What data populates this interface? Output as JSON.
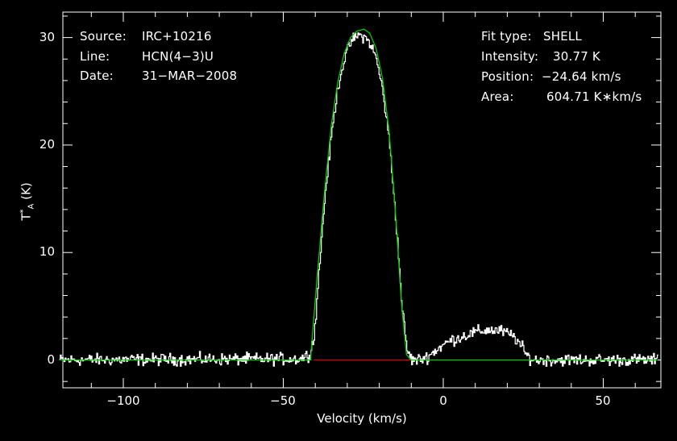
{
  "chart_data": {
    "type": "line",
    "xlabel": "Velocity (km/s)",
    "ylabel": {
      "symbol": "T",
      "sup": "*",
      "sub": "A",
      "unit": "(K)"
    },
    "xlim": [
      -120,
      67
    ],
    "ylim": [
      -2.5,
      32
    ],
    "x_ticks": [
      -100,
      -50,
      0,
      50
    ],
    "x_tick_labels": [
      "−100",
      "−50",
      "0",
      "50"
    ],
    "y_ticks": [
      0,
      10,
      20,
      30
    ],
    "y_tick_labels": [
      "0",
      "10",
      "20",
      "30"
    ],
    "grid": false,
    "header_left": [
      {
        "key": "Source:",
        "value": "IRC+10216"
      },
      {
        "key": "Line:",
        "value": "HCN(4−3)U"
      },
      {
        "key": "Date:",
        "value": "31−MAR−2008"
      }
    ],
    "header_right": [
      {
        "key": "Fit type:",
        "value": "SHELL"
      },
      {
        "key": "Intensity:",
        "value": "30.77 K"
      },
      {
        "key": "Position:",
        "value": "−24.64 km/s"
      },
      {
        "key": "Area:",
        "value": "604.71 K∗km/s"
      }
    ],
    "colors": {
      "background": "#000000",
      "axes": "#ffffff",
      "spectrum": "#ffffff",
      "fit": "#00cc00",
      "baseline": "#cc0000"
    },
    "series": [
      {
        "role": "spectrum",
        "x": [
          -120,
          -45,
          -42,
          -40.5,
          -39,
          -37,
          -35,
          -33,
          -31,
          -29,
          -27,
          -25,
          -23,
          -21,
          -19,
          -17,
          -15,
          -13,
          -11.5,
          -10,
          -8,
          -5,
          -2,
          2,
          6,
          10,
          14,
          18,
          22,
          24,
          26,
          28,
          67
        ],
        "y": [
          0,
          0.1,
          0.5,
          2,
          8,
          15.5,
          21,
          25.5,
          28,
          29.6,
          30.2,
          30.1,
          29.5,
          28,
          25,
          20.5,
          13.5,
          5,
          1,
          0,
          0,
          0.3,
          1,
          1.8,
          2.2,
          2.6,
          2.8,
          2.7,
          2.2,
          1.4,
          0.4,
          0,
          0
        ]
      },
      {
        "role": "fit",
        "x": [
          -120,
          -41.5,
          -39.5,
          -37,
          -35,
          -33,
          -31,
          -29,
          -27,
          -25,
          -24.64,
          -23,
          -21,
          -19,
          -17,
          -15,
          -13,
          -11.5,
          -10,
          67
        ],
        "y": [
          0,
          0,
          7.5,
          16,
          21.8,
          25.8,
          28.5,
          30,
          30.6,
          30.77,
          30.77,
          30.4,
          29,
          26.2,
          21.5,
          14,
          5,
          0.5,
          0,
          0
        ]
      },
      {
        "role": "baseline",
        "x": [
          -40.5,
          -10
        ],
        "y": [
          0,
          0
        ]
      }
    ]
  }
}
